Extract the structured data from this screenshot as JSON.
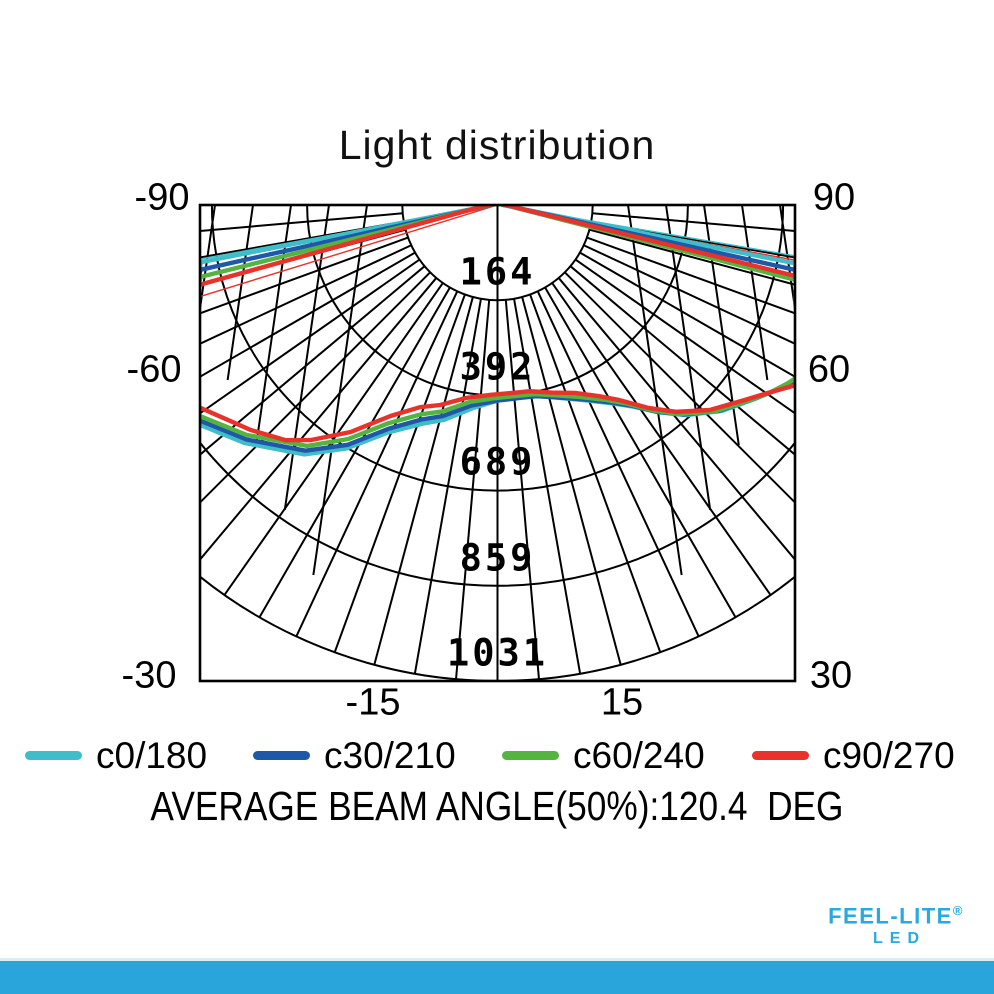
{
  "title": "Light distribution",
  "chart_data": {
    "type": "polar",
    "title": "Light distribution",
    "angle_axis": {
      "unit": "deg",
      "range_deg": [
        -90,
        90
      ],
      "spoke_step_deg": 5,
      "labels": [
        "-90",
        "-60",
        "-30",
        "-15",
        "15",
        "30",
        "60",
        "90"
      ]
    },
    "radial_axis": {
      "ring_count": 5,
      "ring_labels": [
        "164",
        "392",
        "689",
        "859",
        "1031"
      ],
      "inner_blank_ring": 1
    },
    "legend_position": "bottom",
    "grid": true,
    "legend": [
      {
        "label": "c0/180",
        "color": "#3FBEC9"
      },
      {
        "label": "c30/210",
        "color": "#1F58A9"
      },
      {
        "label": "c60/240",
        "color": "#54B440"
      },
      {
        "label": "c90/270",
        "color": "#E8322B"
      }
    ],
    "series": [
      {
        "name": "c0/180",
        "color": "#3FBEC9",
        "width": 4.4,
        "points": [
          [
            -90,
            0.01
          ],
          [
            -86.5,
            0.018
          ],
          [
            -82,
            0.035
          ],
          [
            -79.1,
            0.635
          ],
          [
            -73,
            0.662
          ],
          [
            -67,
            0.745
          ],
          [
            -62.5,
            0.79
          ],
          [
            -54,
            0.781
          ],
          [
            -46.8,
            0.73
          ],
          [
            -37.8,
            0.663
          ],
          [
            -31.8,
            0.602
          ],
          [
            -25.8,
            0.531
          ],
          [
            -19,
            0.486
          ],
          [
            -14,
            0.465
          ],
          [
            -7,
            0.43
          ],
          [
            0.5,
            0.41
          ],
          [
            7,
            0.407
          ],
          [
            12,
            0.409
          ],
          [
            18,
            0.426
          ],
          [
            24,
            0.449
          ],
          [
            30,
            0.481
          ],
          [
            34,
            0.511
          ],
          [
            38,
            0.553
          ],
          [
            42,
            0.594
          ],
          [
            47.5,
            0.64
          ],
          [
            53,
            0.677
          ],
          [
            56.5,
            0.704
          ],
          [
            59,
            0.726
          ],
          [
            62,
            0.747
          ],
          [
            68,
            0.7
          ],
          [
            72.5,
            0.665
          ],
          [
            78.9,
            0.637
          ],
          [
            82,
            0.037
          ],
          [
            86.5,
            0.019
          ],
          [
            90,
            0.01
          ]
        ],
        "thin_rays": [
          [
            -79.7,
            0.634
          ],
          [
            80.3,
            0.635
          ]
        ]
      },
      {
        "name": "c30/210",
        "color": "#1F58A9",
        "width": 4.4,
        "points": [
          [
            -90,
            0.012
          ],
          [
            -86,
            0.02
          ],
          [
            -81,
            0.04
          ],
          [
            -77.7,
            0.639
          ],
          [
            -72,
            0.668
          ],
          [
            -66,
            0.74
          ],
          [
            -62,
            0.782
          ],
          [
            -54.2,
            0.773
          ],
          [
            -47,
            0.722
          ],
          [
            -38,
            0.655
          ],
          [
            -32,
            0.594
          ],
          [
            -26,
            0.523
          ],
          [
            -19.5,
            0.478
          ],
          [
            -14.5,
            0.458
          ],
          [
            -7.5,
            0.425
          ],
          [
            0,
            0.411
          ],
          [
            6.5,
            0.408
          ],
          [
            11.5,
            0.41
          ],
          [
            17.5,
            0.424
          ],
          [
            23.5,
            0.445
          ],
          [
            29.5,
            0.476
          ],
          [
            33.5,
            0.505
          ],
          [
            37.5,
            0.547
          ],
          [
            41.5,
            0.588
          ],
          [
            47,
            0.635
          ],
          [
            52.5,
            0.672
          ],
          [
            56,
            0.7
          ],
          [
            58.7,
            0.721
          ],
          [
            61.8,
            0.742
          ],
          [
            67.5,
            0.695
          ],
          [
            72,
            0.662
          ],
          [
            77.7,
            0.64
          ],
          [
            81.5,
            0.04
          ],
          [
            86,
            0.022
          ],
          [
            90,
            0.012
          ]
        ],
        "thin_rays": []
      },
      {
        "name": "c60/240",
        "color": "#54B440",
        "width": 4.4,
        "points": [
          [
            -90,
            0.013
          ],
          [
            -86,
            0.022
          ],
          [
            -81,
            0.045
          ],
          [
            -76.4,
            0.642
          ],
          [
            -71,
            0.675
          ],
          [
            -66,
            0.735
          ],
          [
            -62,
            0.775
          ],
          [
            -54.6,
            0.766
          ],
          [
            -47.5,
            0.715
          ],
          [
            -38.3,
            0.645
          ],
          [
            -32.5,
            0.583
          ],
          [
            -26.5,
            0.512
          ],
          [
            -20,
            0.468
          ],
          [
            -15,
            0.449
          ],
          [
            -8,
            0.418
          ],
          [
            -1,
            0.406
          ],
          [
            6,
            0.403
          ],
          [
            11,
            0.405
          ],
          [
            17,
            0.418
          ],
          [
            23,
            0.438
          ],
          [
            29,
            0.468
          ],
          [
            33,
            0.497
          ],
          [
            37,
            0.54
          ],
          [
            41,
            0.582
          ],
          [
            46.5,
            0.63
          ],
          [
            52,
            0.668
          ],
          [
            55.5,
            0.695
          ],
          [
            58.5,
            0.716
          ],
          [
            61.5,
            0.735
          ],
          [
            67,
            0.69
          ],
          [
            71.5,
            0.66
          ],
          [
            75.9,
            0.647
          ],
          [
            80.5,
            0.045
          ],
          [
            85.5,
            0.024
          ],
          [
            90,
            0.013
          ]
        ],
        "thin_rays": []
      },
      {
        "name": "c90/270",
        "color": "#E8322B",
        "width": 4.4,
        "points": [
          [
            -90,
            0.015
          ],
          [
            -86,
            0.025
          ],
          [
            -81,
            0.05
          ],
          [
            -75,
            0.648
          ],
          [
            -70,
            0.68
          ],
          [
            -66,
            0.73
          ],
          [
            -62,
            0.765
          ],
          [
            -55.7,
            0.756
          ],
          [
            -47.7,
            0.702
          ],
          [
            -42,
            0.665
          ],
          [
            -38.5,
            0.631
          ],
          [
            -32.9,
            0.568
          ],
          [
            -26.9,
            0.497
          ],
          [
            -21,
            0.455
          ],
          [
            -16,
            0.437
          ],
          [
            -9,
            0.41
          ],
          [
            -2,
            0.399
          ],
          [
            5,
            0.396
          ],
          [
            9.9,
            0.397
          ],
          [
            16,
            0.41
          ],
          [
            22.4,
            0.427
          ],
          [
            28,
            0.455
          ],
          [
            32.1,
            0.484
          ],
          [
            36.5,
            0.53
          ],
          [
            40.8,
            0.574
          ],
          [
            46,
            0.62
          ],
          [
            51.8,
            0.662
          ],
          [
            55,
            0.69
          ],
          [
            58.8,
            0.731
          ],
          [
            62,
            0.75
          ],
          [
            68,
            0.7
          ],
          [
            72,
            0.665
          ],
          [
            76.6,
            0.644
          ],
          [
            81,
            0.05
          ],
          [
            85.5,
            0.028
          ],
          [
            90,
            0.015
          ]
        ],
        "thin_rays": [
          [
            -72.9,
            0.653
          ],
          [
            79.5,
            0.637
          ]
        ]
      }
    ],
    "caption": "AVERAGE BEAM ANGLE(50%):120.4  DEG"
  },
  "caption": "AVERAGE BEAM ANGLE(50%):120.4  DEG",
  "branding": {
    "name": "FEEL-LITE",
    "registered": "®",
    "tagline": "LED",
    "color": "#29A9E0"
  },
  "colors": {
    "grid": "#000000",
    "footer_bar": "#2AA5DC"
  }
}
